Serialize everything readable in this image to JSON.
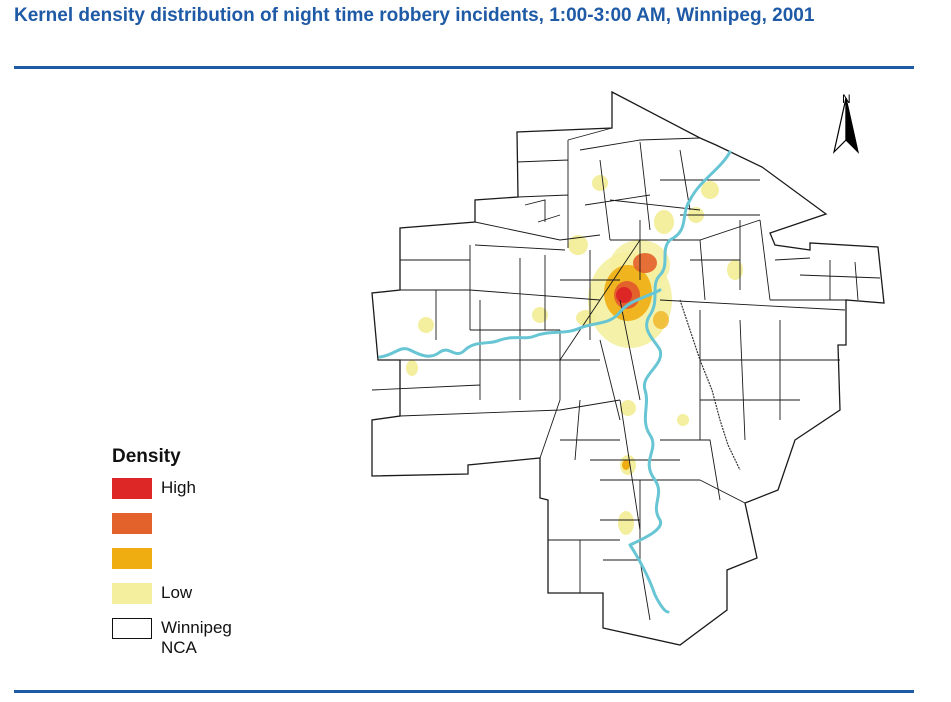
{
  "title": "Kernel density distribution of night time robbery incidents, 1:00-3:00 AM, Winnipeg, 2001",
  "north_label": "N",
  "legend": {
    "title": "Density",
    "items": [
      {
        "label": "High",
        "color": "#dd2626"
      },
      {
        "label": "",
        "color": "#e3612a"
      },
      {
        "label": "",
        "color": "#efad11"
      },
      {
        "label": "Low",
        "color": "#f4ef9e"
      },
      {
        "label": "Winnipeg NCA",
        "color": "#ffffff"
      }
    ]
  },
  "colors": {
    "accent": "#1f5aa6",
    "river": "#67c5d4",
    "boundary": "#1a1a1a"
  }
}
